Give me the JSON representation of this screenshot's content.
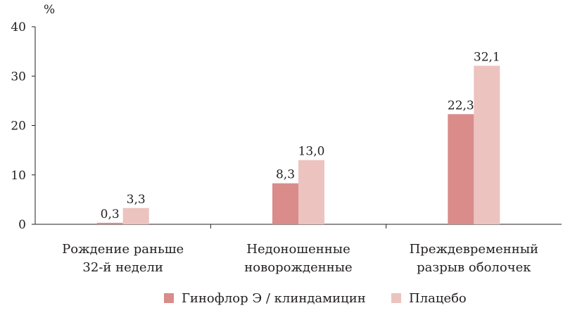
{
  "chart_data": {
    "type": "bar",
    "unit": "%",
    "categories": [
      [
        "Рождение раньше",
        "32-й недели"
      ],
      [
        "Недоношенные",
        "новорожденные"
      ],
      [
        "Преждевременный",
        "разрыв оболочек"
      ]
    ],
    "series": [
      {
        "name": "Гинофлор Э / клиндамицин",
        "values": [
          0.3,
          8.3,
          22.3
        ],
        "labels": [
          "0,3",
          "8,3",
          "22,3"
        ],
        "color": "#d98c8a"
      },
      {
        "name": "Плацебо",
        "values": [
          3.3,
          13.0,
          32.1
        ],
        "labels": [
          "3,3",
          "13,0",
          "32,1"
        ],
        "color": "#ecc3bf"
      }
    ],
    "yticks": [
      0,
      10,
      20,
      30,
      40
    ],
    "ylim": [
      0,
      40
    ],
    "grid": false,
    "legend_position": "bottom"
  }
}
